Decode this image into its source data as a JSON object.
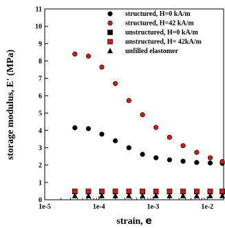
{
  "chart_data": {
    "type": "scatter",
    "xscale": "log",
    "xlim": [
      1e-05,
      0.02
    ],
    "ylim": [
      0,
      11
    ],
    "xlabel": "strain, ",
    "xlabel_symbol": "e",
    "ylabel": "storage modulus, E' (MPa)",
    "grid": false,
    "legend_position": "top-right",
    "x_ticks": [
      1e-05,
      0.0001,
      0.001,
      0.01
    ],
    "x_tick_labels": [
      "1e-5",
      "1e-4",
      "1e-3",
      "1e-2"
    ],
    "y_ticks": [
      0,
      1,
      2,
      3,
      4,
      5,
      6,
      7,
      8,
      9,
      10,
      11
    ],
    "y_tick_labels": [
      "0",
      "1",
      "2",
      "3",
      "4",
      "5",
      "6",
      "7",
      "8",
      "9",
      "10",
      "11"
    ],
    "series": [
      {
        "name": "structured, H=0 kA/m",
        "marker": "circle",
        "color": "#000000",
        "x": [
          3.6e-05,
          6.4e-05,
          0.000113,
          0.000201,
          0.000357,
          0.000637,
          0.00113,
          0.00201,
          0.00357,
          0.00637,
          0.0113,
          0.0189
        ],
        "y": [
          4.15,
          4.1,
          3.78,
          3.4,
          3.0,
          2.62,
          2.42,
          2.3,
          2.22,
          2.15,
          2.12,
          2.1
        ]
      },
      {
        "name": "structured, H=42 kA/m",
        "marker": "circle",
        "color": "#cc1a1a",
        "x": [
          3.6e-05,
          6.4e-05,
          0.000113,
          0.000201,
          0.000357,
          0.000637,
          0.00113,
          0.00201,
          0.00357,
          0.00637,
          0.0113,
          0.0189
        ],
        "y": [
          8.4,
          8.28,
          7.65,
          6.7,
          5.72,
          4.9,
          4.17,
          3.6,
          3.12,
          2.73,
          2.42,
          2.2
        ]
      },
      {
        "name": "unstructured, H=0 kA/m",
        "marker": "square",
        "color": "#000000",
        "x": [
          3.6e-05,
          6.4e-05,
          0.000113,
          0.000201,
          0.000357,
          0.000637,
          0.00113,
          0.00201,
          0.00357,
          0.00637,
          0.0113,
          0.0189
        ],
        "y": [
          0.47,
          0.47,
          0.47,
          0.47,
          0.47,
          0.47,
          0.47,
          0.47,
          0.47,
          0.47,
          0.47,
          0.47
        ]
      },
      {
        "name": "unstructured, H= 42kA/m",
        "marker": "square",
        "color": "#cc1a1a",
        "x": [
          3.6e-05,
          6.4e-05,
          0.000113,
          0.000201,
          0.000357,
          0.000637,
          0.00113,
          0.00201,
          0.00357,
          0.00637,
          0.0113,
          0.0189
        ],
        "y": [
          0.49,
          0.49,
          0.49,
          0.49,
          0.49,
          0.49,
          0.49,
          0.49,
          0.49,
          0.49,
          0.49,
          0.49
        ]
      },
      {
        "name": "unfilled elastomer",
        "marker": "triangle",
        "color": "#000000",
        "x": [
          3.6e-05,
          6.4e-05,
          0.000113,
          0.000201,
          0.000357,
          0.000637,
          0.00113,
          0.00201,
          0.00357,
          0.00637,
          0.0113,
          0.0189
        ],
        "y": [
          0.22,
          0.22,
          0.22,
          0.22,
          0.22,
          0.22,
          0.22,
          0.22,
          0.22,
          0.22,
          0.22,
          0.22
        ]
      }
    ]
  }
}
